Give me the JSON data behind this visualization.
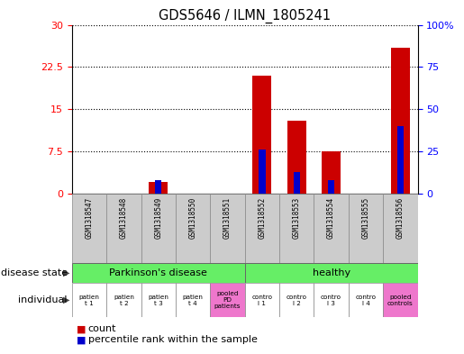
{
  "title": "GDS5646 / ILMN_1805241",
  "samples": [
    "GSM1318547",
    "GSM1318548",
    "GSM1318549",
    "GSM1318550",
    "GSM1318551",
    "GSM1318552",
    "GSM1318553",
    "GSM1318554",
    "GSM1318555",
    "GSM1318556"
  ],
  "count_values": [
    0,
    0,
    2,
    0,
    0,
    21,
    13,
    7.5,
    0,
    26
  ],
  "percentile_values": [
    0,
    0,
    8,
    0,
    0,
    26,
    13,
    8,
    0,
    40
  ],
  "ylim_left": [
    0,
    30
  ],
  "ylim_right": [
    0,
    100
  ],
  "yticks_left": [
    0,
    7.5,
    15,
    22.5,
    30
  ],
  "yticks_right": [
    0,
    25,
    50,
    75,
    100
  ],
  "disease_state_labels": [
    "Parkinson's disease",
    "healthy"
  ],
  "disease_state_color": "#66ee66",
  "individual_labels": [
    "patien\nt 1",
    "patien\nt 2",
    "patien\nt 3",
    "patien\nt 4",
    "pooled\nPD\npatients",
    "contro\nl 1",
    "contro\nl 2",
    "contro\nl 3",
    "contro\nl 4",
    "pooled\ncontrols"
  ],
  "individual_color_normal": "#ffffff",
  "individual_color_pooled": "#ee77cc",
  "bar_color_count": "#cc0000",
  "bar_color_percentile": "#0000cc",
  "bar_width": 0.55,
  "tick_label_area_color": "#cccccc",
  "left_label_disease": "disease state",
  "left_label_individual": "individual",
  "figure_bg": "#ffffff"
}
